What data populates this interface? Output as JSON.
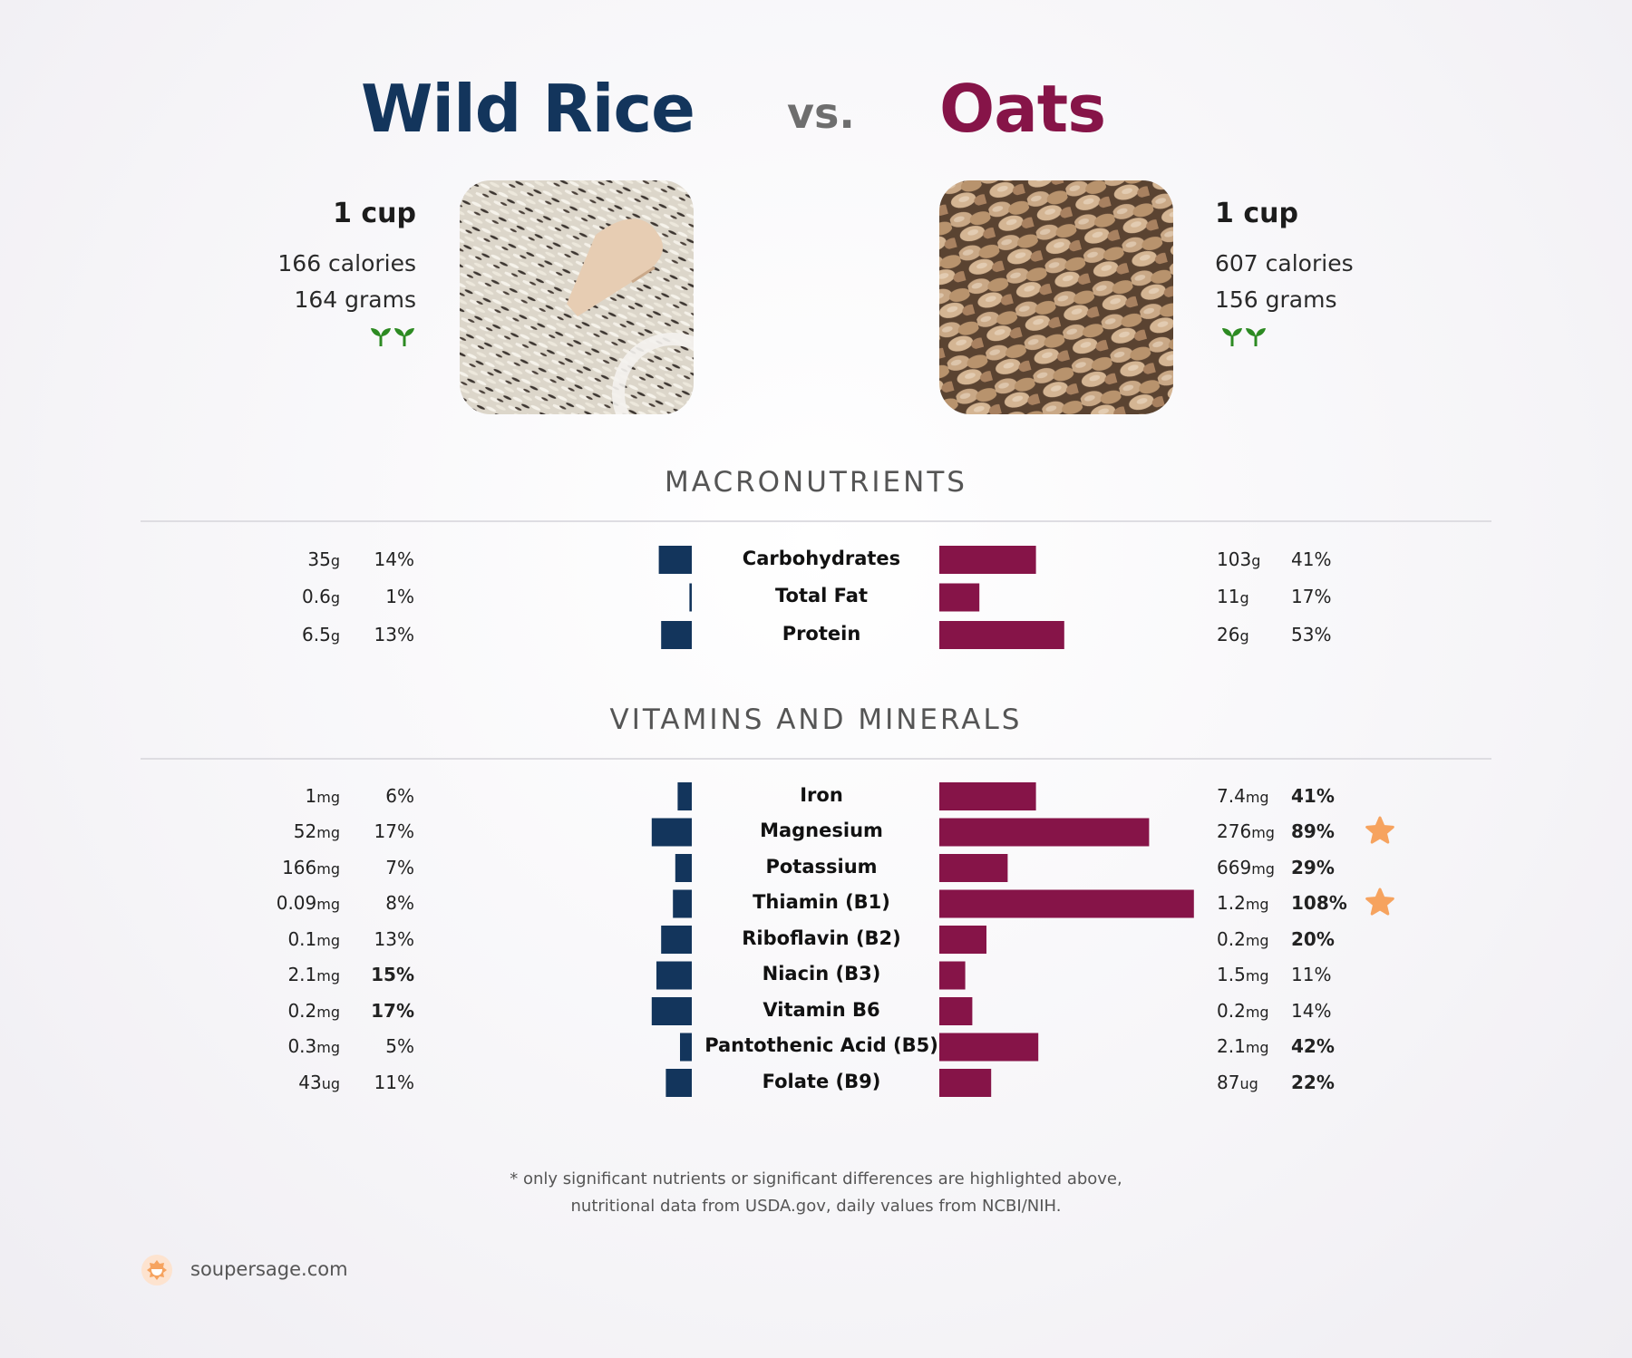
{
  "header": {
    "left_title": "Wild Rice",
    "vs": "vs.",
    "right_title": "Oats"
  },
  "left_food": {
    "serving": "1 cup",
    "calories": "166 calories",
    "grams": "164 grams",
    "badge_icon": "sprout-icon"
  },
  "right_food": {
    "serving": "1 cup",
    "calories": "607 calories",
    "grams": "156 grams",
    "badge_icon": "sprout-icon"
  },
  "colors": {
    "left": "#13355c",
    "right": "#861448",
    "star": "#f6a35f",
    "sprout": "#2d8a22"
  },
  "sections": {
    "macros_title": "MACRONUTRIENTS",
    "vitamins_title": "VITAMINS AND MINERALS"
  },
  "chart_data": [
    {
      "type": "bar",
      "categories": [
        "Carbohydrates",
        "Total Fat",
        "Protein"
      ],
      "series": [
        {
          "name": "Wild Rice",
          "amounts": [
            "35",
            "0.6",
            "6.5"
          ],
          "units": [
            "g",
            "g",
            "g"
          ],
          "values": [
            14,
            1,
            13
          ],
          "bold": [
            false,
            false,
            false
          ]
        },
        {
          "name": "Oats",
          "amounts": [
            "103",
            "11",
            "26"
          ],
          "units": [
            "g",
            "g",
            "g"
          ],
          "values": [
            41,
            17,
            53
          ],
          "bold": [
            false,
            false,
            false
          ],
          "star": [
            false,
            false,
            false
          ]
        }
      ],
      "value_unit": "% daily value"
    },
    {
      "type": "bar",
      "categories": [
        "Iron",
        "Magnesium",
        "Potassium",
        "Thiamin (B1)",
        "Riboflavin (B2)",
        "Niacin (B3)",
        "Vitamin B6",
        "Pantothenic Acid (B5)",
        "Folate (B9)"
      ],
      "series": [
        {
          "name": "Wild Rice",
          "amounts": [
            "1",
            "52",
            "166",
            "0.09",
            "0.1",
            "2.1",
            "0.2",
            "0.3",
            "43"
          ],
          "units": [
            "mg",
            "mg",
            "mg",
            "mg",
            "mg",
            "mg",
            "mg",
            "mg",
            "ug"
          ],
          "values": [
            6,
            17,
            7,
            8,
            13,
            15,
            17,
            5,
            11
          ],
          "bold": [
            false,
            false,
            false,
            false,
            false,
            true,
            true,
            false,
            false
          ]
        },
        {
          "name": "Oats",
          "amounts": [
            "7.4",
            "276",
            "669",
            "1.2",
            "0.2",
            "1.5",
            "0.2",
            "2.1",
            "87"
          ],
          "units": [
            "mg",
            "mg",
            "mg",
            "mg",
            "mg",
            "mg",
            "mg",
            "mg",
            "ug"
          ],
          "values": [
            41,
            89,
            29,
            108,
            20,
            11,
            14,
            42,
            22
          ],
          "bold": [
            true,
            true,
            true,
            true,
            true,
            false,
            false,
            true,
            true
          ],
          "star": [
            false,
            true,
            false,
            true,
            false,
            false,
            false,
            false,
            false
          ]
        }
      ],
      "value_unit": "% daily value"
    }
  ],
  "footer": {
    "note_line1": "* only significant nutrients or significant differences are highlighted above,",
    "note_line2": "nutritional data from USDA.gov, daily values from NCBI/NIH.",
    "brand": "soupersage.com",
    "brand_icon": "soupersage-logo-icon"
  }
}
